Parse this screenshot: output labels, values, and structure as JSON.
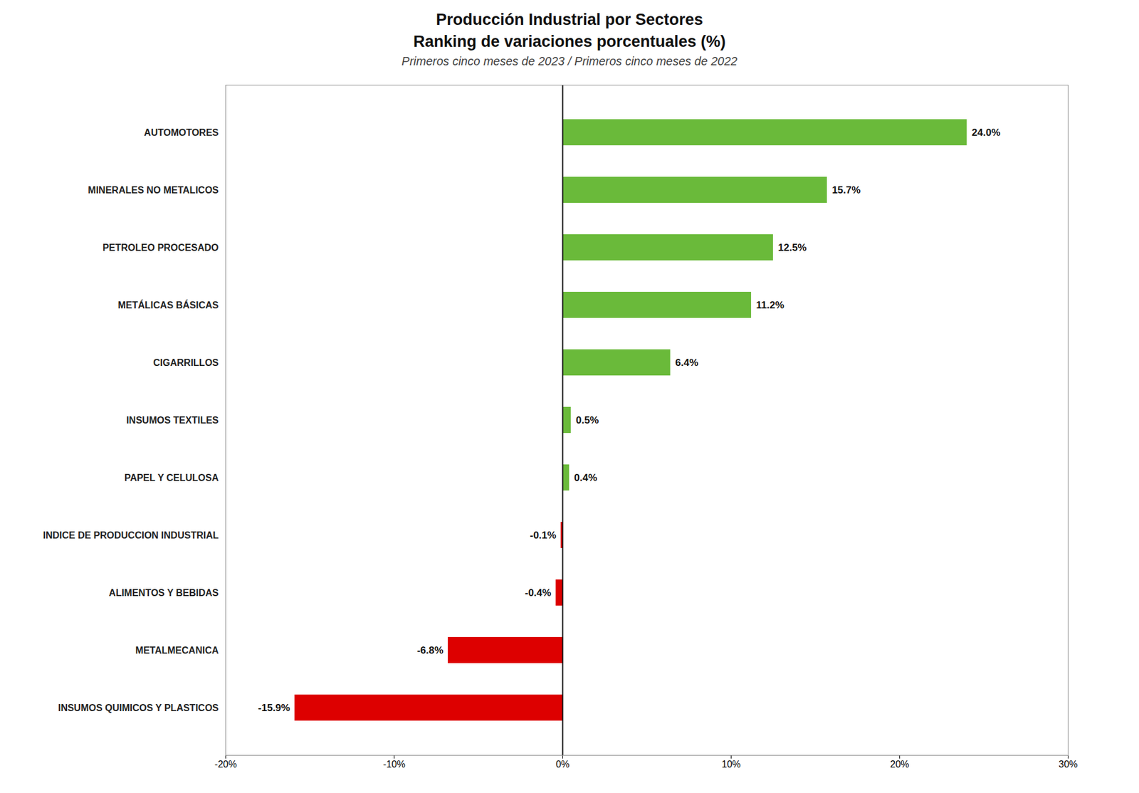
{
  "chart_data": {
    "type": "bar",
    "orientation": "horizontal",
    "title": "Producción Industrial por Sectores",
    "subtitle": [
      "Ranking de variaciones porcentuales (%)",
      "Primeros cinco meses de 2023 / Primeros cinco meses de 2022"
    ],
    "categories": [
      "AUTOMOTORES",
      "MINERALES NO METALICOS",
      "PETROLEO PROCESADO",
      "METÁLICAS BÁSICAS",
      "CIGARRILLOS",
      "INSUMOS TEXTILES",
      "PAPEL Y CELULOSA",
      "INDICE DE PRODUCCION INDUSTRIAL",
      "ALIMENTOS Y BEBIDAS",
      "METALMECANICA",
      "INSUMOS QUIMICOS Y PLASTICOS"
    ],
    "values": [
      24.0,
      15.7,
      12.5,
      11.2,
      6.4,
      0.5,
      0.4,
      -0.1,
      -0.4,
      -6.8,
      -15.9
    ],
    "value_labels": [
      "24.0%",
      "15.7%",
      "12.5%",
      "11.2%",
      "6.4%",
      "0.5%",
      "0.4%",
      "-0.1%",
      "-0.4%",
      "-6.8%",
      "-15.9%"
    ],
    "colors": [
      "#6aba3a",
      "#6aba3a",
      "#6aba3a",
      "#6aba3a",
      "#6aba3a",
      "#6aba3a",
      "#6aba3a",
      "#dd0000",
      "#dd0000",
      "#dd0000",
      "#dd0000"
    ],
    "data_labels": true,
    "grid": false,
    "xlim": [
      -20,
      30
    ],
    "xticks": [
      {
        "value": -20,
        "label": "-20%"
      },
      {
        "value": -10,
        "label": "-10%"
      },
      {
        "value": 0,
        "label": "0%"
      },
      {
        "value": 10,
        "label": "10%"
      },
      {
        "value": 20,
        "label": "20%"
      },
      {
        "value": 30,
        "label": "30%"
      }
    ]
  }
}
